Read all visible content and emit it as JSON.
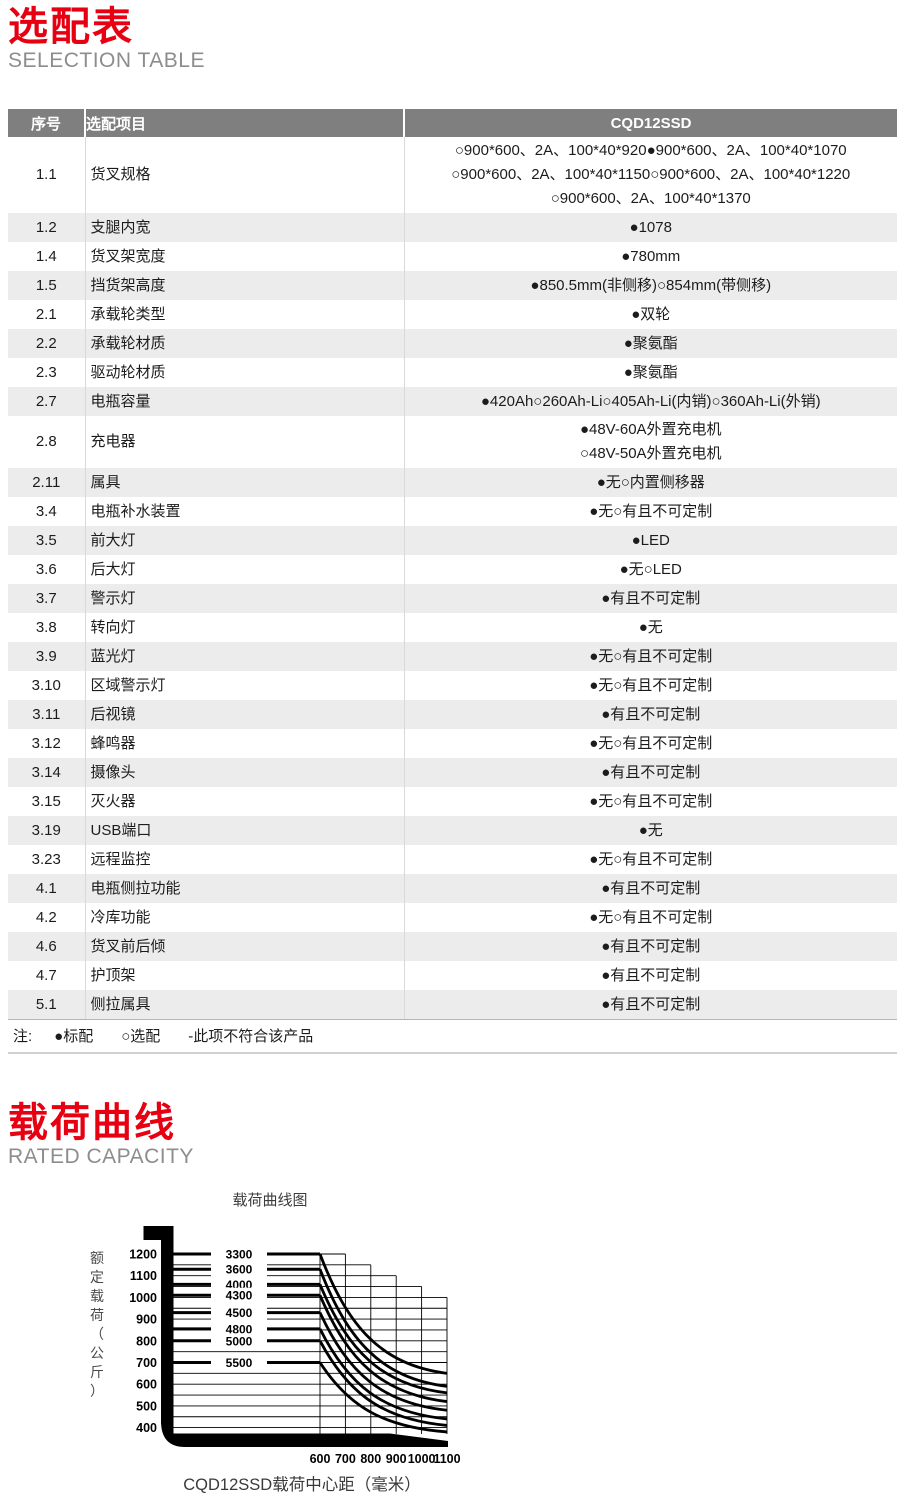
{
  "theme": {
    "accent_red": "#e60012",
    "subtitle_gray": "#8d8d8d",
    "table_header_bg": "#7f7f7f",
    "table_header_text": "#ffffff",
    "row_alt_bg": "#ececec",
    "chart_ink": "#000000"
  },
  "sections": {
    "selection": {
      "title_cn": "选配表",
      "title_en": "SELECTION TABLE"
    },
    "capacity": {
      "title_cn": "载荷曲线",
      "title_en": "RATED CAPACITY"
    }
  },
  "table": {
    "headers": [
      "序号",
      "选配项目",
      "CQD12SSD"
    ],
    "rows": [
      {
        "no": "1.1",
        "item": "货叉规格",
        "values": [
          "○900*600、2A、100*40*920●900*600、2A、100*40*1070",
          "○900*600、2A、100*40*1150○900*600、2A、100*40*1220",
          "○900*600、2A、100*40*1370"
        ]
      },
      {
        "no": "1.2",
        "item": "支腿内宽",
        "values": [
          "●1078"
        ]
      },
      {
        "no": "1.4",
        "item": "货叉架宽度",
        "values": [
          "●780mm"
        ]
      },
      {
        "no": "1.5",
        "item": "挡货架高度",
        "values": [
          "●850.5mm(非侧移)○854mm(带侧移)"
        ]
      },
      {
        "no": "2.1",
        "item": "承载轮类型",
        "values": [
          "●双轮"
        ]
      },
      {
        "no": "2.2",
        "item": "承载轮材质",
        "values": [
          "●聚氨酯"
        ]
      },
      {
        "no": "2.3",
        "item": "驱动轮材质",
        "values": [
          "●聚氨酯"
        ]
      },
      {
        "no": "2.7",
        "item": "电瓶容量",
        "values": [
          "●420Ah○260Ah-Li○405Ah-Li(内销)○360Ah-Li(外销)"
        ]
      },
      {
        "no": "2.8",
        "item": "充电器",
        "values": [
          "●48V-60A外置充电机",
          "○48V-50A外置充电机"
        ]
      },
      {
        "no": "2.11",
        "item": "属具",
        "values": [
          "●无○内置侧移器"
        ]
      },
      {
        "no": "3.4",
        "item": "电瓶补水装置",
        "values": [
          "●无○有且不可定制"
        ]
      },
      {
        "no": "3.5",
        "item": "前大灯",
        "values": [
          "●LED"
        ]
      },
      {
        "no": "3.6",
        "item": "后大灯",
        "values": [
          "●无○LED"
        ]
      },
      {
        "no": "3.7",
        "item": "警示灯",
        "values": [
          "●有且不可定制"
        ]
      },
      {
        "no": "3.8",
        "item": "转向灯",
        "values": [
          "●无"
        ]
      },
      {
        "no": "3.9",
        "item": "蓝光灯",
        "values": [
          "●无○有且不可定制"
        ]
      },
      {
        "no": "3.10",
        "item": "区域警示灯",
        "values": [
          "●无○有且不可定制"
        ]
      },
      {
        "no": "3.11",
        "item": "后视镜",
        "values": [
          "●有且不可定制"
        ]
      },
      {
        "no": "3.12",
        "item": "蜂鸣器",
        "values": [
          "●无○有且不可定制"
        ]
      },
      {
        "no": "3.14",
        "item": "摄像头",
        "values": [
          "●有且不可定制"
        ]
      },
      {
        "no": "3.15",
        "item": "灭火器",
        "values": [
          "●无○有且不可定制"
        ]
      },
      {
        "no": "3.19",
        "item": "USB端口",
        "values": [
          "●无"
        ]
      },
      {
        "no": "3.23",
        "item": "远程监控",
        "values": [
          "●无○有且不可定制"
        ]
      },
      {
        "no": "4.1",
        "item": "电瓶侧拉功能",
        "values": [
          "●有且不可定制"
        ]
      },
      {
        "no": "4.2",
        "item": "冷库功能",
        "values": [
          "●无○有且不可定制"
        ]
      },
      {
        "no": "4.6",
        "item": "货叉前后倾",
        "values": [
          "●有且不可定制"
        ]
      },
      {
        "no": "4.7",
        "item": "护顶架",
        "values": [
          "●有且不可定制"
        ]
      },
      {
        "no": "5.1",
        "item": "侧拉属具",
        "values": [
          "●有且不可定制"
        ]
      }
    ],
    "note": {
      "label": "注:",
      "items": [
        "●标配",
        "○选配",
        "-此项不符合该产品"
      ]
    }
  },
  "chart_data": {
    "type": "line",
    "title": "载荷曲线图",
    "ylabel": "额定载荷（公斤）",
    "xlabel": "CQD12SSD载荷中心距（毫米）",
    "xlim": [
      600,
      1100
    ],
    "ylim": [
      400,
      1200
    ],
    "x_ticks": [
      600,
      700,
      800,
      900,
      1000,
      1100
    ],
    "y_ticks": [
      1200,
      1100,
      1000,
      900,
      800,
      700,
      600,
      500,
      400
    ],
    "grid": "on",
    "grid_step_y": 50,
    "x_gridline_tops": {
      "600": 1200,
      "700": 1200,
      "800": 1150,
      "900": 1100,
      "1000": 1050,
      "1100": 1000
    },
    "legend_position": "labels-on-lines",
    "series": [
      {
        "name": "3300",
        "capacity_at_600": 1200,
        "capacity_at_1100": 650
      },
      {
        "name": "3600",
        "capacity_at_600": 1130,
        "capacity_at_1100": 590
      },
      {
        "name": "4000",
        "capacity_at_600": 1060,
        "capacity_at_1100": 560
      },
      {
        "name": "4300",
        "capacity_at_600": 1010,
        "capacity_at_1100": 520
      },
      {
        "name": "4500",
        "capacity_at_600": 930,
        "capacity_at_1100": 480
      },
      {
        "name": "4800",
        "capacity_at_600": 855,
        "capacity_at_1100": 440
      },
      {
        "name": "5000",
        "capacity_at_600": 800,
        "capacity_at_1100": 410
      },
      {
        "name": "5500",
        "capacity_at_600": 700,
        "capacity_at_1100": 380
      }
    ]
  }
}
